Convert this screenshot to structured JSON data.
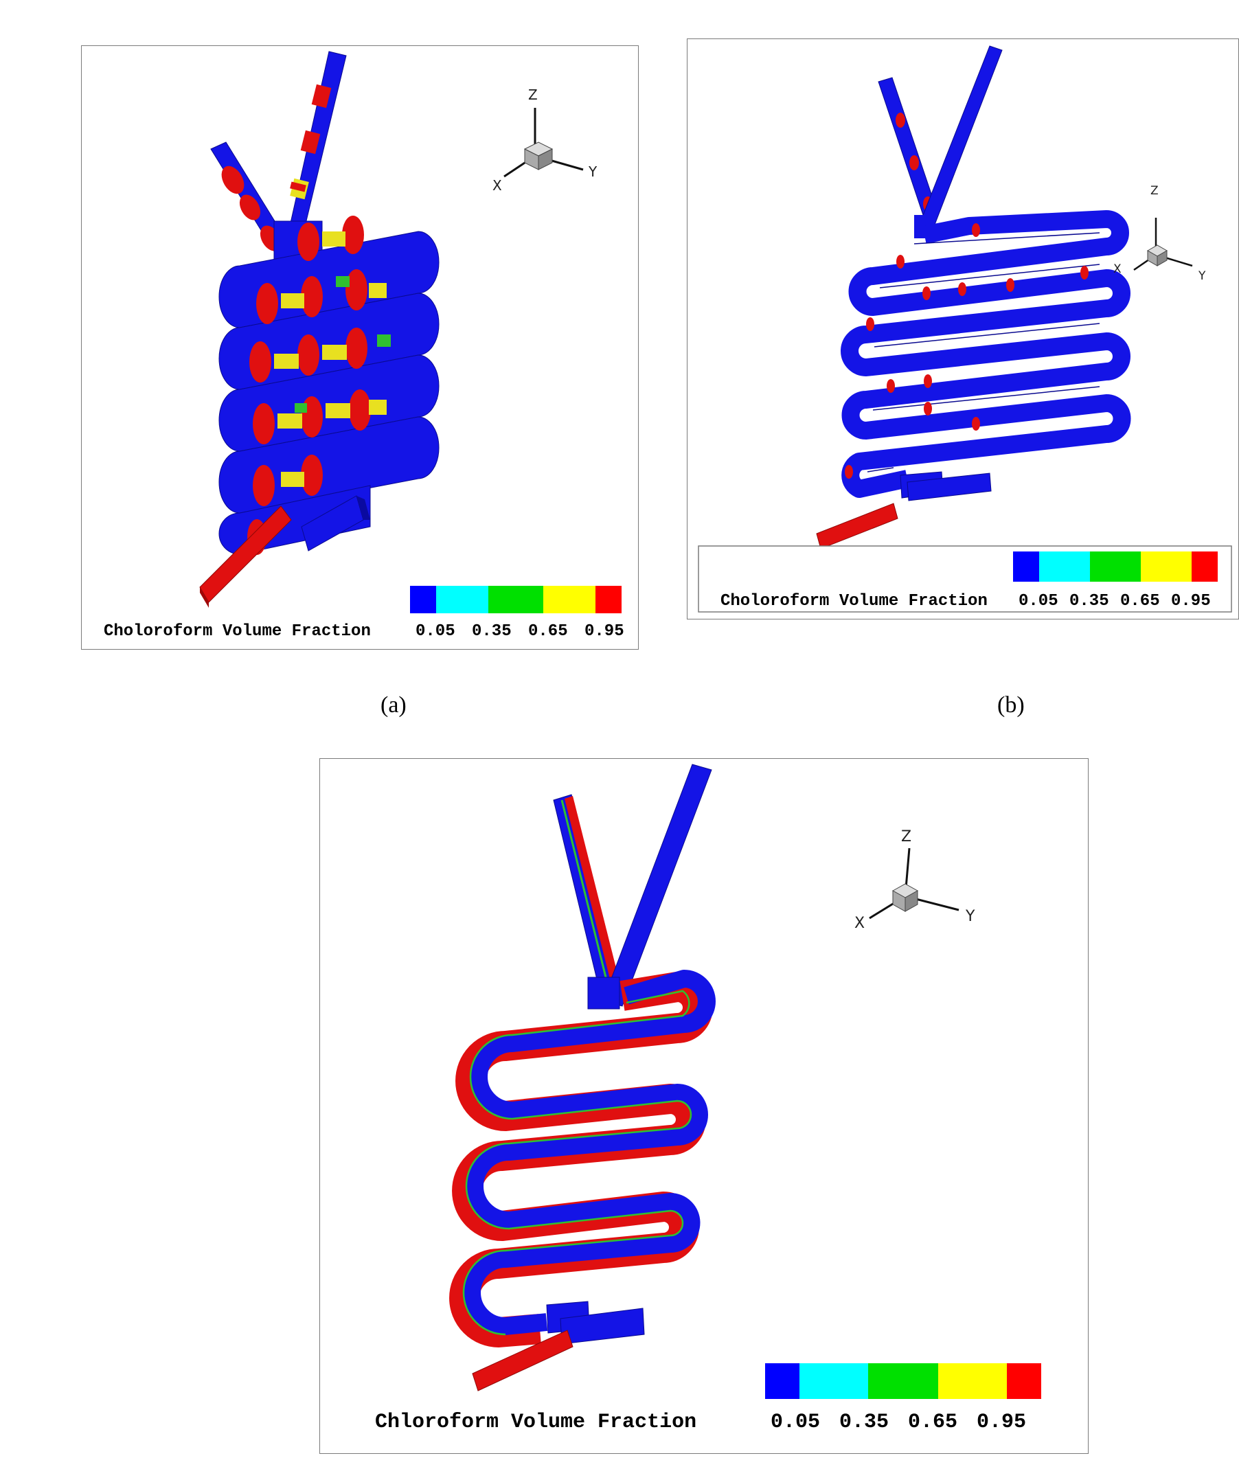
{
  "panels": [
    {
      "id": "a",
      "caption": "(a)",
      "legend_title": "Choloroform Volume Fraction",
      "legend_values": [
        "0.05",
        "0.35",
        "0.65",
        "0.95"
      ],
      "axis_labels": {
        "z": "Z",
        "x": "X",
        "y": "Y"
      }
    },
    {
      "id": "b",
      "caption": "(b)",
      "legend_title": "Choloroform Volume Fraction",
      "legend_values": [
        "0.05",
        "0.35",
        "0.65",
        "0.95"
      ],
      "axis_labels": {
        "z": "Z",
        "x": "X",
        "y": "Y"
      }
    },
    {
      "id": "c",
      "caption": "",
      "legend_title": "Chloroform Volume Fraction",
      "legend_values": [
        "0.05",
        "0.35",
        "0.65",
        "0.95"
      ],
      "axis_labels": {
        "z": "Z",
        "x": "X",
        "y": "Y"
      }
    }
  ],
  "colormap": [
    "#0000ff",
    "#00ffff",
    "#00e000",
    "#ffff00",
    "#ff0000"
  ],
  "colors": {
    "channel_blue": "#1414e6",
    "phase_red": "#e01010",
    "interface_green": "#30c030",
    "interface_yellow": "#e8e020",
    "frame": "#7a7a7a"
  }
}
